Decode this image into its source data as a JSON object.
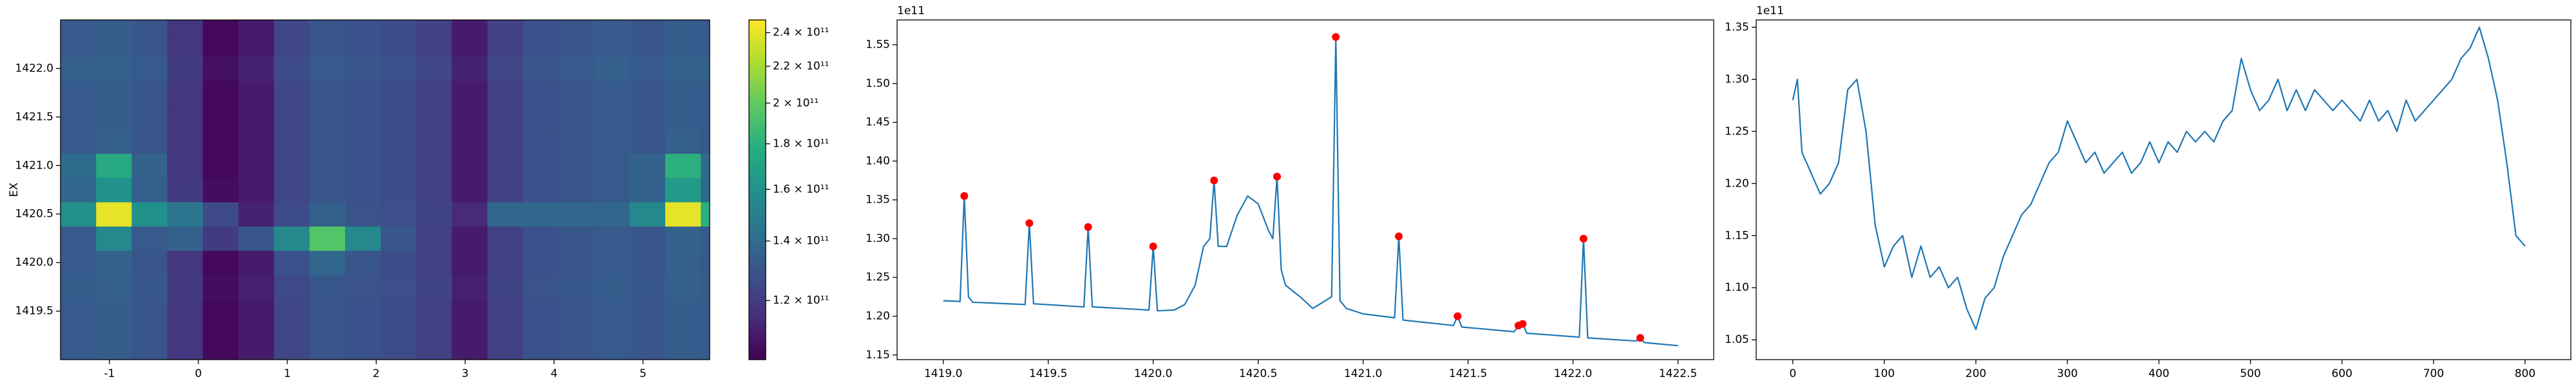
{
  "chart_data": [
    {
      "type": "heatmap",
      "colormap": "viridis",
      "ylabel": "EX",
      "x": [
        -1.35,
        -0.95,
        -0.55,
        -0.15,
        0.25,
        0.65,
        1.05,
        1.45,
        1.85,
        2.25,
        2.65,
        3.05,
        3.45,
        3.85,
        4.25,
        4.65,
        5.05,
        5.45,
        5.85
      ],
      "y": [
        1419.0,
        1419.25,
        1419.5,
        1419.75,
        1420.0,
        1420.25,
        1420.5,
        1420.75,
        1421.0,
        1421.25,
        1421.5,
        1421.75,
        1422.0,
        1422.25,
        1422.5
      ],
      "z": [
        [
          132000000000.0,
          133000000000.0,
          130000000000.0,
          118000000000.0,
          105000000000.0,
          110000000000.0,
          124000000000.0,
          130000000000.0,
          128000000000.0,
          126000000000.0,
          122000000000.0,
          110000000000.0,
          122000000000.0,
          128000000000.0,
          130000000000.0,
          132000000000.0,
          130000000000.0,
          133000000000.0,
          132000000000.0
        ],
        [
          132000000000.0,
          133000000000.0,
          130000000000.0,
          118000000000.0,
          105000000000.0,
          110000000000.0,
          124000000000.0,
          130000000000.0,
          128000000000.0,
          126000000000.0,
          122000000000.0,
          110000000000.0,
          122000000000.0,
          128000000000.0,
          130000000000.0,
          132000000000.0,
          130000000000.0,
          133000000000.0,
          132000000000.0
        ],
        [
          132000000000.0,
          133000000000.0,
          130000000000.0,
          118000000000.0,
          105000000000.0,
          110000000000.0,
          124000000000.0,
          130000000000.0,
          128000000000.0,
          126000000000.0,
          122000000000.0,
          110000000000.0,
          122000000000.0,
          128000000000.0,
          130000000000.0,
          132000000000.0,
          130000000000.0,
          133000000000.0,
          132000000000.0
        ],
        [
          133000000000.0,
          134000000000.0,
          131000000000.0,
          119000000000.0,
          106000000000.0,
          111000000000.0,
          125000000000.0,
          131000000000.0,
          129000000000.0,
          127000000000.0,
          123000000000.0,
          111000000000.0,
          123000000000.0,
          129000000000.0,
          131000000000.0,
          133000000000.0,
          131000000000.0,
          134000000000.0,
          133000000000.0
        ],
        [
          132000000000.0,
          136000000000.0,
          130000000000.0,
          118000000000.0,
          105000000000.0,
          110000000000.0,
          128000000000.0,
          138000000000.0,
          130000000000.0,
          126000000000.0,
          122000000000.0,
          110000000000.0,
          122000000000.0,
          128000000000.0,
          130000000000.0,
          132000000000.0,
          130000000000.0,
          134000000000.0,
          132000000000.0
        ],
        [
          132000000000.0,
          155000000000.0,
          132000000000.0,
          135000000000.0,
          120000000000.0,
          130000000000.0,
          155000000000.0,
          195000000000.0,
          155000000000.0,
          130000000000.0,
          122000000000.0,
          110000000000.0,
          122000000000.0,
          128000000000.0,
          130000000000.0,
          132000000000.0,
          130000000000.0,
          136000000000.0,
          132000000000.0
        ],
        [
          160000000000.0,
          240000000000.0,
          160000000000.0,
          145000000000.0,
          125000000000.0,
          112000000000.0,
          126000000000.0,
          135000000000.0,
          129000000000.0,
          127000000000.0,
          123000000000.0,
          114000000000.0,
          138000000000.0,
          138000000000.0,
          138000000000.0,
          138000000000.0,
          155000000000.0,
          240000000000.0,
          180000000000.0
        ],
        [
          138000000000.0,
          160000000000.0,
          134000000000.0,
          120000000000.0,
          106000000000.0,
          110000000000.0,
          124000000000.0,
          130000000000.0,
          128000000000.0,
          126000000000.0,
          122000000000.0,
          110000000000.0,
          122000000000.0,
          128000000000.0,
          130000000000.0,
          132000000000.0,
          136000000000.0,
          165000000000.0,
          140000000000.0
        ],
        [
          140000000000.0,
          175000000000.0,
          136000000000.0,
          118000000000.0,
          105000000000.0,
          110000000000.0,
          124000000000.0,
          130000000000.0,
          128000000000.0,
          126000000000.0,
          122000000000.0,
          110000000000.0,
          122000000000.0,
          128000000000.0,
          130000000000.0,
          132000000000.0,
          136000000000.0,
          180000000000.0,
          140000000000.0
        ],
        [
          132000000000.0,
          134000000000.0,
          130000000000.0,
          118000000000.0,
          105000000000.0,
          110000000000.0,
          124000000000.0,
          130000000000.0,
          128000000000.0,
          126000000000.0,
          122000000000.0,
          110000000000.0,
          122000000000.0,
          128000000000.0,
          130000000000.0,
          132000000000.0,
          130000000000.0,
          134000000000.0,
          132000000000.0
        ],
        [
          132000000000.0,
          133000000000.0,
          130000000000.0,
          118000000000.0,
          105000000000.0,
          110000000000.0,
          124000000000.0,
          130000000000.0,
          128000000000.0,
          126000000000.0,
          122000000000.0,
          110000000000.0,
          122000000000.0,
          128000000000.0,
          130000000000.0,
          132000000000.0,
          130000000000.0,
          133000000000.0,
          132000000000.0
        ],
        [
          132000000000.0,
          133000000000.0,
          130000000000.0,
          118000000000.0,
          105000000000.0,
          110000000000.0,
          124000000000.0,
          130000000000.0,
          128000000000.0,
          126000000000.0,
          122000000000.0,
          110000000000.0,
          122000000000.0,
          128000000000.0,
          130000000000.0,
          132000000000.0,
          130000000000.0,
          133000000000.0,
          132000000000.0
        ],
        [
          134000000000.0,
          135000000000.0,
          132000000000.0,
          120000000000.0,
          107000000000.0,
          112000000000.0,
          126000000000.0,
          132000000000.0,
          130000000000.0,
          128000000000.0,
          124000000000.0,
          112000000000.0,
          124000000000.0,
          130000000000.0,
          132000000000.0,
          134000000000.0,
          132000000000.0,
          135000000000.0,
          134000000000.0
        ],
        [
          132000000000.0,
          133000000000.0,
          130000000000.0,
          118000000000.0,
          105000000000.0,
          110000000000.0,
          124000000000.0,
          130000000000.0,
          128000000000.0,
          126000000000.0,
          122000000000.0,
          110000000000.0,
          122000000000.0,
          128000000000.0,
          130000000000.0,
          132000000000.0,
          130000000000.0,
          133000000000.0,
          132000000000.0
        ],
        [
          132000000000.0,
          133000000000.0,
          130000000000.0,
          118000000000.0,
          105000000000.0,
          110000000000.0,
          124000000000.0,
          130000000000.0,
          128000000000.0,
          126000000000.0,
          122000000000.0,
          110000000000.0,
          122000000000.0,
          128000000000.0,
          130000000000.0,
          132000000000.0,
          130000000000.0,
          133000000000.0,
          132000000000.0
        ]
      ],
      "xlim": [
        -1.55,
        5.75
      ],
      "xticks": [
        -1,
        0,
        1,
        2,
        3,
        4,
        5
      ],
      "ylim": [
        1419.0,
        1422.5
      ],
      "yticks": [
        1419.5,
        {
          "value": 1420,
          "label": "1420.0"
        },
        1420.5,
        {
          "value": 1421,
          "label": "1421.0"
        },
        1421.5,
        {
          "value": 1422,
          "label": "1422.0"
        }
      ],
      "colorbar": {
        "scale": "log",
        "clim": [
          103000000000.0,
          248000000000.0
        ],
        "ticks": [
          {
            "value": 120000000000.0,
            "label": "1.2 × 10¹¹"
          },
          {
            "value": 140000000000.0,
            "label": "1.4 × 10¹¹"
          },
          {
            "value": 160000000000.0,
            "label": "1.6 × 10¹¹"
          },
          {
            "value": 180000000000.0,
            "label": "1.8 × 10¹¹"
          },
          {
            "value": 200000000000.0,
            "label": "2 × 10¹¹"
          },
          {
            "value": 220000000000.0,
            "label": "2.2 × 10¹¹"
          },
          {
            "value": 240000000000.0,
            "label": "2.4 × 10¹¹"
          }
        ]
      }
    },
    {
      "type": "line",
      "color": "#1f77b4",
      "offset_text": "1e11",
      "x": [
        1419.0,
        1419.08,
        1419.1,
        1419.12,
        1419.14,
        1419.39,
        1419.41,
        1419.43,
        1419.67,
        1419.69,
        1419.71,
        1419.98,
        1420.0,
        1420.02,
        1420.1,
        1420.15,
        1420.2,
        1420.24,
        1420.27,
        1420.29,
        1420.31,
        1420.35,
        1420.4,
        1420.45,
        1420.5,
        1420.55,
        1420.57,
        1420.59,
        1420.61,
        1420.63,
        1420.7,
        1420.76,
        1420.82,
        1420.85,
        1420.87,
        1420.89,
        1420.92,
        1421.0,
        1421.15,
        1421.17,
        1421.19,
        1421.43,
        1421.45,
        1421.47,
        1421.72,
        1421.74,
        1421.76,
        1421.78,
        1422.03,
        1422.05,
        1422.07,
        1422.3,
        1422.32,
        1422.34,
        1422.5
      ],
      "values": [
        122000000000.0,
        121900000000.0,
        135500000000.0,
        122500000000.0,
        121800000000.0,
        121500000000.0,
        132000000000.0,
        121600000000.0,
        121200000000.0,
        131500000000.0,
        121200000000.0,
        120800000000.0,
        129000000000.0,
        120700000000.0,
        120800000000.0,
        121500000000.0,
        124000000000.0,
        129000000000.0,
        130000000000.0,
        137500000000.0,
        129000000000.0,
        129000000000.0,
        133000000000.0,
        135500000000.0,
        134500000000.0,
        131000000000.0,
        130000000000.0,
        138000000000.0,
        126000000000.0,
        124000000000.0,
        122500000000.0,
        121000000000.0,
        122000000000.0,
        122500000000.0,
        156000000000.0,
        122000000000.0,
        121000000000.0,
        120300000000.0,
        119800000000.0,
        130300000000.0,
        119500000000.0,
        118800000000.0,
        120000000000.0,
        118600000000.0,
        118000000000.0,
        118800000000.0,
        119000000000.0,
        117800000000.0,
        117300000000.0,
        130000000000.0,
        117200000000.0,
        116800000000.0,
        117200000000.0,
        116600000000.0,
        116200000000.0
      ],
      "peaks": {
        "color": "#ff0000",
        "x": [
          1419.1,
          1419.41,
          1419.69,
          1420.0,
          1420.29,
          1420.59,
          1420.87,
          1421.17,
          1421.45,
          1421.74,
          1421.76,
          1422.05,
          1422.32
        ],
        "values": [
          135500000000.0,
          132000000000.0,
          131500000000.0,
          129000000000.0,
          137500000000.0,
          138000000000.0,
          156000000000.0,
          130300000000.0,
          120000000000.0,
          118800000000.0,
          119000000000.0,
          130000000000.0,
          117200000000.0
        ]
      },
      "xlim": [
        1418.78,
        1422.67
      ],
      "xticks": [
        {
          "value": 1419,
          "label": "1419.0"
        },
        1419.5,
        {
          "value": 1420,
          "label": "1420.0"
        },
        1420.5,
        {
          "value": 1421,
          "label": "1421.0"
        },
        1421.5,
        {
          "value": 1422,
          "label": "1422.0"
        },
        1422.5
      ],
      "ylim": [
        114400000000.0,
        158200000000.0
      ],
      "yticks": [
        {
          "value": 115000000000.0,
          "label": "1.15"
        },
        {
          "value": 120000000000.0,
          "label": "1.20"
        },
        {
          "value": 125000000000.0,
          "label": "1.25"
        },
        {
          "value": 130000000000.0,
          "label": "1.30"
        },
        {
          "value": 135000000000.0,
          "label": "1.35"
        },
        {
          "value": 140000000000.0,
          "label": "1.40"
        },
        {
          "value": 145000000000.0,
          "label": "1.45"
        },
        {
          "value": 150000000000.0,
          "label": "1.50"
        },
        {
          "value": 155000000000.0,
          "label": "1.55"
        }
      ]
    },
    {
      "type": "line",
      "color": "#1f77b4",
      "offset_text": "1e11",
      "x": [
        0,
        5,
        10,
        20,
        30,
        40,
        50,
        60,
        70,
        80,
        90,
        100,
        110,
        120,
        130,
        140,
        150,
        160,
        170,
        180,
        190,
        200,
        210,
        220,
        230,
        240,
        250,
        260,
        270,
        280,
        290,
        300,
        310,
        320,
        330,
        340,
        350,
        360,
        370,
        380,
        390,
        400,
        410,
        420,
        430,
        440,
        450,
        460,
        470,
        480,
        490,
        500,
        510,
        520,
        530,
        540,
        550,
        560,
        570,
        580,
        590,
        600,
        610,
        620,
        630,
        640,
        650,
        660,
        670,
        680,
        690,
        700,
        710,
        720,
        730,
        740,
        750,
        760,
        770,
        780,
        790,
        800
      ],
      "values": [
        128000000000.0,
        130000000000.0,
        123000000000.0,
        121000000000.0,
        119000000000.0,
        120000000000.0,
        122000000000.0,
        129000000000.0,
        130000000000.0,
        125000000000.0,
        116000000000.0,
        112000000000.0,
        114000000000.0,
        115000000000.0,
        111000000000.0,
        114000000000.0,
        111000000000.0,
        112000000000.0,
        110000000000.0,
        111000000000.0,
        108000000000.0,
        106000000000.0,
        109000000000.0,
        110000000000.0,
        113000000000.0,
        115000000000.0,
        117000000000.0,
        118000000000.0,
        120000000000.0,
        122000000000.0,
        123000000000.0,
        126000000000.0,
        124000000000.0,
        122000000000.0,
        123000000000.0,
        121000000000.0,
        122000000000.0,
        123000000000.0,
        121000000000.0,
        122000000000.0,
        124000000000.0,
        122000000000.0,
        124000000000.0,
        123000000000.0,
        125000000000.0,
        124000000000.0,
        125000000000.0,
        124000000000.0,
        126000000000.0,
        127000000000.0,
        132000000000.0,
        129000000000.0,
        127000000000.0,
        128000000000.0,
        130000000000.0,
        127000000000.0,
        129000000000.0,
        127000000000.0,
        129000000000.0,
        128000000000.0,
        127000000000.0,
        128000000000.0,
        127000000000.0,
        126000000000.0,
        128000000000.0,
        126000000000.0,
        127000000000.0,
        125000000000.0,
        128000000000.0,
        126000000000.0,
        127000000000.0,
        128000000000.0,
        129000000000.0,
        130000000000.0,
        132000000000.0,
        133000000000.0,
        135000000000.0,
        132000000000.0,
        128000000000.0,
        122000000000.0,
        115000000000.0,
        114000000000.0
      ],
      "xlim": [
        -40,
        850
      ],
      "xticks": [
        0,
        100,
        200,
        300,
        400,
        500,
        600,
        700,
        800
      ],
      "ylim": [
        103100000000.0,
        135700000000.0
      ],
      "yticks": [
        {
          "value": 105000000000.0,
          "label": "1.05"
        },
        {
          "value": 110000000000.0,
          "label": "1.10"
        },
        {
          "value": 115000000000.0,
          "label": "1.15"
        },
        {
          "value": 120000000000.0,
          "label": "1.20"
        },
        {
          "value": 125000000000.0,
          "label": "1.25"
        },
        {
          "value": 130000000000.0,
          "label": "1.30"
        },
        {
          "value": 135000000000.0,
          "label": "1.35"
        }
      ]
    }
  ]
}
